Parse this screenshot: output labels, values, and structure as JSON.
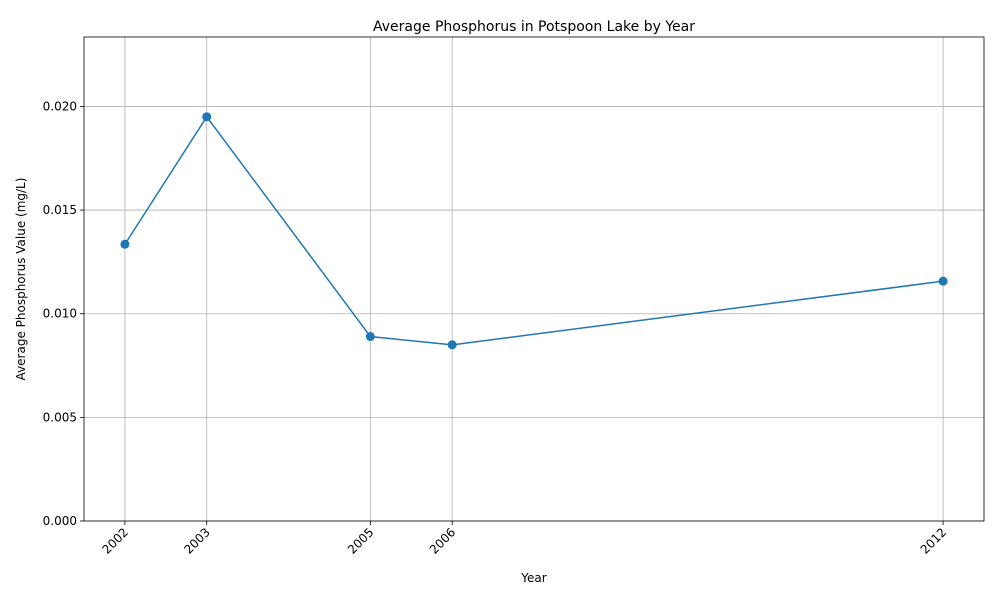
{
  "chart_data": {
    "type": "line",
    "title": "Average Phosphorus in Potspoon Lake by Year",
    "xlabel": "Year",
    "ylabel": "Average Phosphorus Value (mg/L)",
    "x": [
      2002,
      2003,
      2005,
      2006,
      2012
    ],
    "x_tick_labels": [
      "2002",
      "2003",
      "2005",
      "2006",
      "2012"
    ],
    "series": [
      {
        "values": [
          0.01335,
          0.0195,
          0.0089,
          0.0085,
          0.01157
        ],
        "color": "#1f77b4"
      }
    ],
    "y_ticks": [
      0.0,
      0.005,
      0.01,
      0.015,
      0.02
    ],
    "y_tick_labels": [
      "0.000",
      "0.005",
      "0.010",
      "0.015",
      "0.020"
    ],
    "xlim": [
      2001.5,
      2012.5
    ],
    "ylim": [
      0,
      0.02335
    ],
    "grid": true,
    "markers": "circle"
  }
}
